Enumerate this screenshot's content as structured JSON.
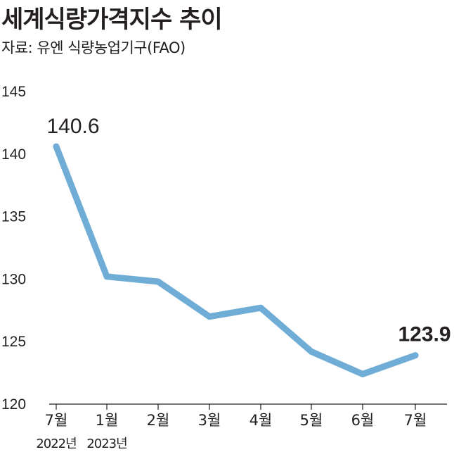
{
  "header": {
    "title": "세계식량가격지수 추이",
    "source": "자료: 유엔 식량농업기구(FAO)"
  },
  "colors": {
    "line": "#6fadd6",
    "text": "#231f20",
    "axis": "#231f20"
  },
  "chart_data": {
    "type": "line",
    "title": "세계식량가격지수 추이",
    "xlabel": "",
    "ylabel": "",
    "categories": [
      "7월",
      "1월",
      "2월",
      "3월",
      "4월",
      "5월",
      "6월",
      "7월"
    ],
    "year_labels": [
      "2022년",
      "2023년",
      "",
      "",
      "",
      "",
      "",
      ""
    ],
    "series": [
      {
        "values": [
          140.6,
          130.2,
          129.8,
          127.0,
          127.7,
          124.2,
          122.4,
          123.9
        ]
      }
    ],
    "ylim": [
      120,
      145
    ],
    "yticks": [
      "120",
      "125",
      "130",
      "135",
      "140",
      "145"
    ],
    "data_labels": [
      {
        "index": 0,
        "text": "140.6"
      },
      {
        "index": 7,
        "text": "123.9"
      }
    ],
    "grid": false
  }
}
